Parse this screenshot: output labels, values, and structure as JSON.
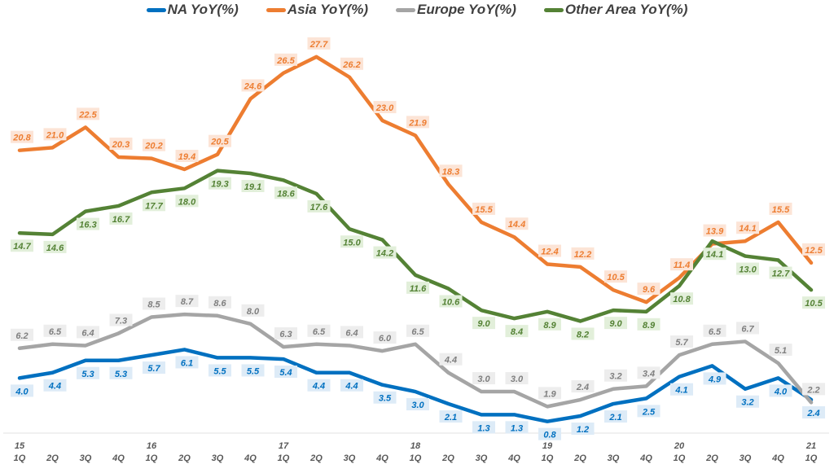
{
  "chart_data": {
    "type": "line",
    "title": "",
    "xlabel": "",
    "ylabel": "",
    "ylim": [
      0,
      30
    ],
    "grid": false,
    "legend_position": "top",
    "categories": [
      {
        "year": "15",
        "q": "1Q"
      },
      {
        "year": "",
        "q": "2Q"
      },
      {
        "year": "",
        "q": "3Q"
      },
      {
        "year": "",
        "q": "4Q"
      },
      {
        "year": "16",
        "q": "1Q"
      },
      {
        "year": "",
        "q": "2Q"
      },
      {
        "year": "",
        "q": "3Q"
      },
      {
        "year": "",
        "q": "4Q"
      },
      {
        "year": "17",
        "q": "1Q"
      },
      {
        "year": "",
        "q": "2Q"
      },
      {
        "year": "",
        "q": "3Q"
      },
      {
        "year": "",
        "q": "4Q"
      },
      {
        "year": "18",
        "q": "1Q"
      },
      {
        "year": "",
        "q": "2Q"
      },
      {
        "year": "",
        "q": "3Q"
      },
      {
        "year": "",
        "q": "4Q"
      },
      {
        "year": "19",
        "q": "1Q"
      },
      {
        "year": "",
        "q": "2Q"
      },
      {
        "year": "",
        "q": "3Q"
      },
      {
        "year": "",
        "q": "4Q"
      },
      {
        "year": "20",
        "q": "1Q"
      },
      {
        "year": "",
        "q": "2Q"
      },
      {
        "year": "",
        "q": "3Q"
      },
      {
        "year": "",
        "q": "4Q"
      },
      {
        "year": "21",
        "q": "1Q"
      }
    ],
    "series": [
      {
        "name": "NA YoY(%)",
        "color": "#0070C0",
        "label_bg": "#DDEBF7",
        "label_color": "#0070C0",
        "label_side": "below",
        "values": [
          4.0,
          4.4,
          5.3,
          5.3,
          5.7,
          6.1,
          5.5,
          5.5,
          5.4,
          4.4,
          4.4,
          3.5,
          3.0,
          2.1,
          1.3,
          1.3,
          0.8,
          1.2,
          2.1,
          2.5,
          4.1,
          4.9,
          3.2,
          4.0,
          2.4
        ]
      },
      {
        "name": "Asia YoY(%)",
        "color": "#ED7D31",
        "label_bg": "#FCE4D6",
        "label_color": "#ED7D31",
        "label_side": "above",
        "values": [
          20.8,
          21.0,
          22.5,
          20.3,
          20.2,
          19.4,
          20.5,
          24.6,
          26.5,
          27.7,
          26.2,
          23.0,
          21.9,
          18.3,
          15.5,
          14.4,
          12.4,
          12.2,
          10.5,
          9.6,
          11.4,
          13.9,
          14.1,
          15.5,
          12.5
        ]
      },
      {
        "name": "Europe YoY(%)",
        "color": "#A5A5A5",
        "label_bg": "#EDEDED",
        "label_color": "#7F7F7F",
        "label_side": "above",
        "values": [
          6.2,
          6.5,
          6.4,
          7.3,
          8.5,
          8.7,
          8.6,
          8.0,
          6.3,
          6.5,
          6.4,
          6.0,
          6.5,
          4.4,
          3.0,
          3.0,
          1.9,
          2.4,
          3.2,
          3.4,
          5.7,
          6.5,
          6.7,
          5.1,
          2.2
        ]
      },
      {
        "name": "Other Area YoY(%)",
        "color": "#548235",
        "label_bg": "#E2EFDA",
        "label_color": "#548235",
        "label_side": "below",
        "values": [
          14.7,
          14.6,
          16.3,
          16.7,
          17.7,
          18.0,
          19.3,
          19.1,
          18.6,
          17.6,
          15.0,
          14.2,
          11.6,
          10.6,
          9.0,
          8.4,
          8.9,
          8.2,
          9.0,
          8.9,
          10.8,
          14.1,
          13.0,
          12.7,
          10.5
        ]
      }
    ]
  }
}
